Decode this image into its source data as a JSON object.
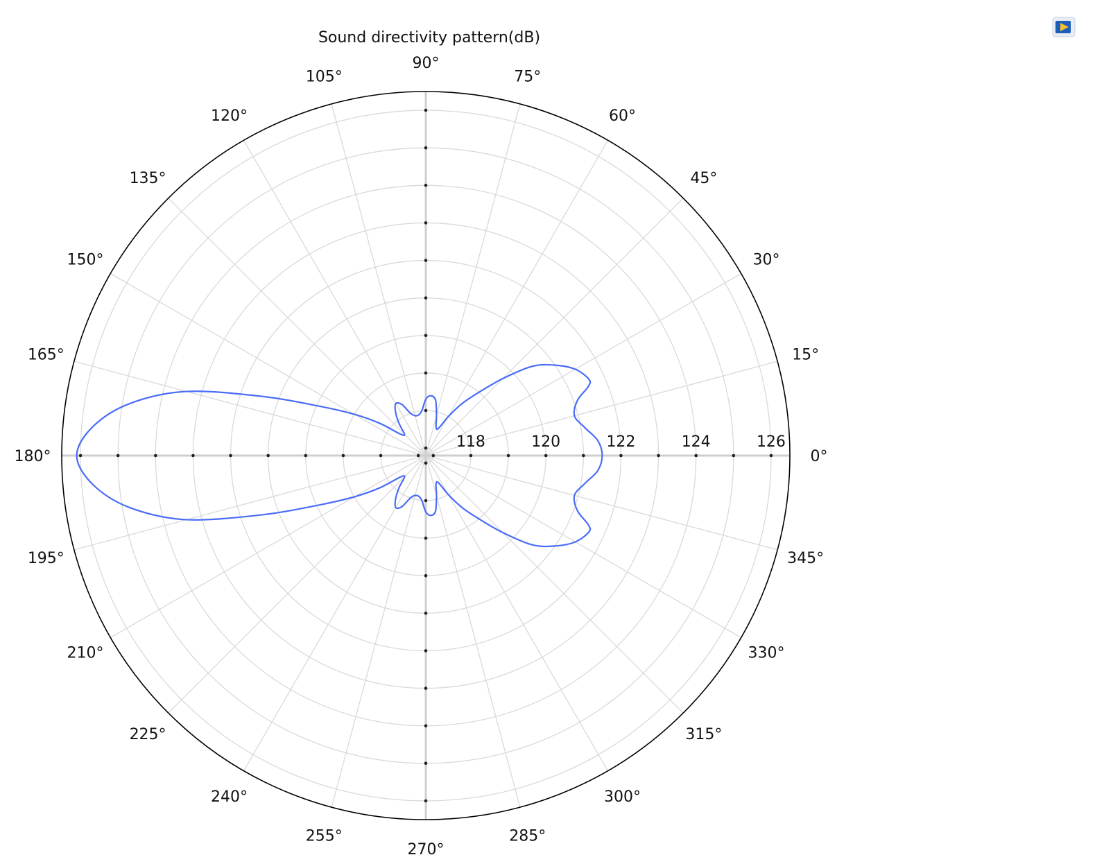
{
  "chart_data": {
    "type": "line",
    "polar": true,
    "title": "Sound directivity pattern(dB)",
    "rlim": [
      116.8,
      126.5
    ],
    "r_ticks": [
      118,
      120,
      122,
      124,
      126
    ],
    "r_tick_labels": [
      "118",
      "120",
      "122",
      "124",
      "126"
    ],
    "angle_ticks_deg": [
      0,
      15,
      30,
      45,
      60,
      75,
      90,
      105,
      120,
      135,
      150,
      165,
      180,
      195,
      210,
      225,
      240,
      255,
      270,
      285,
      300,
      315,
      330,
      345
    ],
    "angle_tick_labels": [
      "0°",
      "15°",
      "30°",
      "45°",
      "60°",
      "75°",
      "90°",
      "105°",
      "120°",
      "135°",
      "150°",
      "165°",
      "180°",
      "195°",
      "210°",
      "225°",
      "240°",
      "255°",
      "270°",
      "285°",
      "300°",
      "315°",
      "330°",
      "345°"
    ],
    "grid": true,
    "series": [
      {
        "color": "#4a6cf7",
        "theta_deg": [
          0,
          5,
          10,
          15,
          20,
          23,
          25,
          30,
          35,
          40,
          45,
          50,
          55,
          60,
          65,
          70,
          75,
          80,
          85,
          90,
          95,
          100,
          105,
          110,
          115,
          120,
          125,
          130,
          135,
          140,
          145,
          150,
          155,
          160,
          165,
          170,
          175,
          180,
          185,
          190,
          195,
          200,
          205,
          210,
          215,
          220,
          225,
          230,
          235,
          240,
          245,
          250,
          255,
          260,
          265,
          270,
          275,
          280,
          285,
          290,
          295,
          300,
          305,
          310,
          315,
          320,
          325,
          330,
          335,
          337,
          340,
          345,
          350,
          355,
          360
        ],
        "r_db": [
          121.5,
          121.4,
          121.1,
          120.9,
          121.1,
          121.5,
          121.6,
          121.4,
          121.0,
          120.5,
          119.7,
          119.0,
          118.5,
          118.0,
          117.6,
          117.6,
          117.9,
          118.3,
          118.4,
          118.3,
          118.0,
          117.9,
          117.9,
          118.0,
          118.3,
          118.4,
          118.2,
          117.9,
          117.6,
          117.7,
          118.3,
          119.0,
          119.9,
          121.4,
          123.4,
          124.8,
          125.7,
          126.1,
          125.7,
          124.8,
          123.4,
          121.4,
          119.9,
          119.0,
          118.3,
          117.7,
          117.6,
          117.9,
          118.2,
          118.4,
          118.3,
          118.0,
          117.9,
          117.9,
          118.0,
          118.3,
          118.4,
          118.3,
          117.9,
          117.6,
          117.6,
          118.0,
          118.5,
          119.0,
          119.7,
          120.5,
          121.0,
          121.4,
          121.6,
          121.5,
          121.1,
          120.9,
          121.1,
          121.4,
          121.5
        ]
      }
    ]
  }
}
